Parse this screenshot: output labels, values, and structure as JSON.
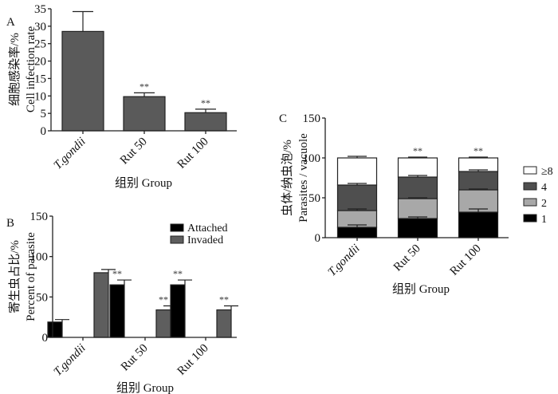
{
  "colors": {
    "panel_a_bar": "#5a5a5a",
    "attached": "#000000",
    "invaded": "#5e5e5e",
    "stack_1": "#000000",
    "stack_2": "#a8a8a8",
    "stack_4": "#4f4f4f",
    "stack_8": "#ffffff"
  },
  "chart_data": [
    {
      "id": "A",
      "type": "bar",
      "panel_label": "A",
      "title": "",
      "xlabel": "组别 Group",
      "ylabel_cn": "细胞感染率/%",
      "ylabel_en": "Cell infection rate",
      "categories": [
        "T.gondii",
        "Rut 50",
        "Rut 100"
      ],
      "italic_categories": [
        true,
        false,
        false
      ],
      "values": [
        28.5,
        9.8,
        5.2
      ],
      "error_upper": [
        34.2,
        10.9,
        6.2
      ],
      "significance": [
        "",
        "**",
        "**"
      ],
      "ylim": [
        0,
        35
      ],
      "yticks": [
        0,
        5,
        10,
        15,
        20,
        25,
        30,
        35
      ],
      "grid": false
    },
    {
      "id": "B",
      "type": "bar",
      "panel_label": "B",
      "title": "",
      "xlabel": "组别 Group",
      "ylabel_cn": "寄生虫占比/%",
      "ylabel_en": "Percent of parasite",
      "categories": [
        "T.gondii",
        "Rut 50",
        "Rut 100"
      ],
      "italic_categories": [
        true,
        false,
        false
      ],
      "series": [
        {
          "name": "Attached",
          "values": [
            19,
            65,
            65
          ],
          "error_upper": [
            22,
            71,
            71
          ],
          "significance": [
            "",
            "**",
            "**"
          ]
        },
        {
          "name": "Invaded",
          "values": [
            80,
            34,
            34
          ],
          "error_upper": [
            84,
            39,
            39
          ],
          "significance": [
            "",
            "**",
            "**"
          ]
        }
      ],
      "legend": "top-right",
      "ylim": [
        0,
        150
      ],
      "yticks": [
        0,
        50,
        100,
        150
      ],
      "grid": false
    },
    {
      "id": "C",
      "type": "bar",
      "stacked": true,
      "panel_label": "C",
      "title": "",
      "xlabel": "组别 Group",
      "ylabel_cn": "虫体/纳虫泡/%",
      "ylabel_en": "Parasites / vacuole",
      "categories": [
        "T.gondii",
        "Rut 50",
        "Rut 100"
      ],
      "italic_categories": [
        true,
        false,
        false
      ],
      "series": [
        {
          "name": "1",
          "values": [
            13,
            24,
            32
          ],
          "error_upper": [
            16,
            26,
            36
          ]
        },
        {
          "name": "2",
          "values": [
            21,
            25,
            28
          ],
          "error_upper": [
            23,
            26,
            29
          ]
        },
        {
          "name": "4",
          "values": [
            32,
            27,
            23
          ],
          "error_upper": [
            34,
            29,
            25
          ]
        },
        {
          "name": "≥8",
          "values": [
            34,
            24,
            17
          ],
          "error_upper": [
            36,
            25,
            18
          ]
        }
      ],
      "significance": [
        "",
        "**",
        "**"
      ],
      "legend_order": [
        "≥8",
        "4",
        "2",
        "1"
      ],
      "legend": "right",
      "ylim": [
        0,
        150
      ],
      "yticks": [
        0,
        50,
        100,
        150
      ],
      "grid": false
    }
  ]
}
